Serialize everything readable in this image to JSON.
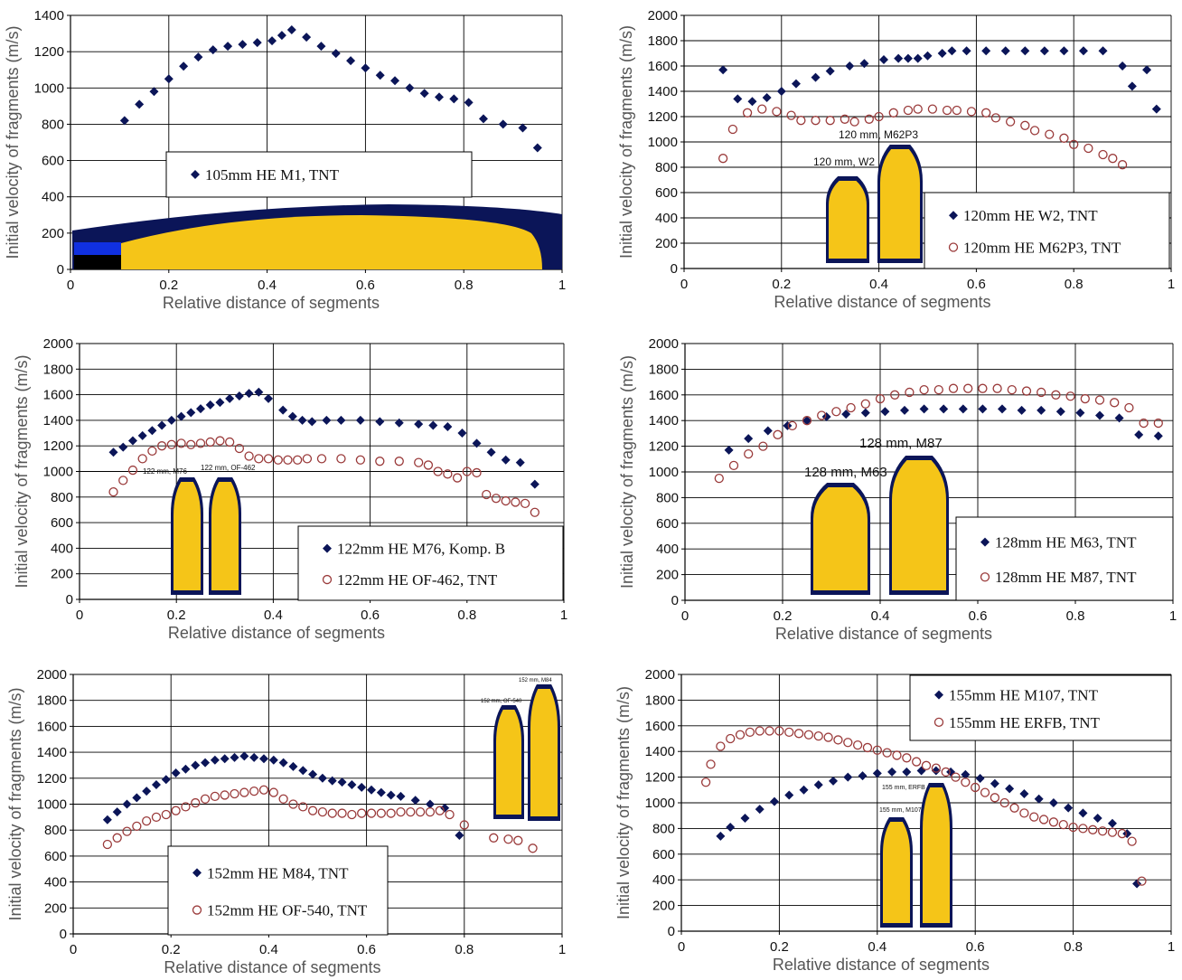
{
  "figure": {
    "colors": {
      "diamond": "#0b1558",
      "circle": "#9a3a3a",
      "shell_body": "#f5c518",
      "shell_case": "#0b1558",
      "grid": "#000000"
    }
  },
  "chart_data": [
    {
      "type": "scatter",
      "xlabel": "Relative distance of segments",
      "ylabel": "Initial velocity of fragments (m/s)",
      "xlim": [
        0,
        1
      ],
      "ylim": [
        0,
        1400
      ],
      "xticks": [
        "0",
        "0.2",
        "0.4",
        "0.6",
        "0.8",
        "1"
      ],
      "yticks": [
        "0",
        "200",
        "400",
        "600",
        "800",
        "1000",
        "1200",
        "1400"
      ],
      "grid": true,
      "legend_position": "center-left",
      "shell_labels": [],
      "series": [
        {
          "name": "105mm HE M1, TNT",
          "marker": "diamond",
          "x": [
            0.11,
            0.14,
            0.17,
            0.2,
            0.23,
            0.26,
            0.29,
            0.32,
            0.35,
            0.38,
            0.41,
            0.43,
            0.45,
            0.48,
            0.51,
            0.54,
            0.57,
            0.6,
            0.63,
            0.66,
            0.69,
            0.72,
            0.75,
            0.78,
            0.81,
            0.84,
            0.88,
            0.92,
            0.95
          ],
          "y": [
            820,
            910,
            980,
            1050,
            1120,
            1170,
            1210,
            1230,
            1240,
            1250,
            1260,
            1290,
            1320,
            1280,
            1230,
            1190,
            1150,
            1110,
            1070,
            1040,
            1000,
            970,
            950,
            940,
            920,
            830,
            800,
            780,
            670
          ]
        }
      ]
    },
    {
      "type": "scatter",
      "xlabel": "Relative distance of segments",
      "ylabel": "Initial velocity of fragments (m/s)",
      "xlim": [
        0,
        1
      ],
      "ylim": [
        0,
        2000
      ],
      "xticks": [
        "0",
        "0.2",
        "0.4",
        "0.6",
        "0.8",
        "1"
      ],
      "yticks": [
        "0",
        "200",
        "400",
        "600",
        "800",
        "1000",
        "1200",
        "1400",
        "1600",
        "1800",
        "2000"
      ],
      "grid": true,
      "legend_position": "bottom-right",
      "shell_labels": [
        "120 mm, W2",
        "120 mm, M62P3"
      ],
      "series": [
        {
          "name": "120mm HE W2, TNT",
          "marker": "diamond",
          "x": [
            0.08,
            0.11,
            0.14,
            0.17,
            0.2,
            0.23,
            0.27,
            0.3,
            0.34,
            0.37,
            0.41,
            0.44,
            0.46,
            0.48,
            0.5,
            0.53,
            0.55,
            0.58,
            0.62,
            0.66,
            0.7,
            0.74,
            0.78,
            0.82,
            0.86,
            0.9,
            0.92,
            0.95,
            0.97
          ],
          "y": [
            1570,
            1340,
            1320,
            1350,
            1400,
            1460,
            1510,
            1560,
            1600,
            1620,
            1650,
            1660,
            1660,
            1660,
            1680,
            1700,
            1720,
            1720,
            1720,
            1720,
            1720,
            1720,
            1720,
            1720,
            1720,
            1600,
            1440,
            1570,
            1260
          ]
        },
        {
          "name": "120mm HE M62P3, TNT",
          "marker": "circle",
          "x": [
            0.08,
            0.1,
            0.13,
            0.16,
            0.19,
            0.22,
            0.24,
            0.27,
            0.3,
            0.33,
            0.35,
            0.38,
            0.4,
            0.43,
            0.46,
            0.48,
            0.51,
            0.54,
            0.56,
            0.59,
            0.62,
            0.64,
            0.67,
            0.7,
            0.72,
            0.75,
            0.78,
            0.8,
            0.83,
            0.86,
            0.88,
            0.9
          ],
          "y": [
            870,
            1100,
            1230,
            1260,
            1240,
            1210,
            1170,
            1170,
            1170,
            1180,
            1160,
            1180,
            1200,
            1230,
            1250,
            1260,
            1260,
            1250,
            1250,
            1240,
            1230,
            1190,
            1160,
            1130,
            1090,
            1060,
            1030,
            980,
            950,
            900,
            870,
            820
          ]
        }
      ]
    },
    {
      "type": "scatter",
      "xlabel": "Relative distance of segments",
      "ylabel": "Initial velocity of fragments (m/s)",
      "xlim": [
        0,
        1
      ],
      "ylim": [
        0,
        2000
      ],
      "xticks": [
        "0",
        "0.2",
        "0.4",
        "0.6",
        "0.8",
        "1"
      ],
      "yticks": [
        "0",
        "200",
        "400",
        "600",
        "800",
        "1000",
        "1200",
        "1400",
        "1600",
        "1800",
        "2000"
      ],
      "grid": true,
      "legend_position": "bottom-right",
      "shell_labels": [
        "122 mm, M76",
        "122 mm, OF-462"
      ],
      "series": [
        {
          "name": "122mm HE M76, Komp. B",
          "marker": "diamond",
          "x": [
            0.07,
            0.09,
            0.11,
            0.13,
            0.15,
            0.17,
            0.19,
            0.21,
            0.23,
            0.25,
            0.27,
            0.29,
            0.31,
            0.33,
            0.35,
            0.37,
            0.39,
            0.42,
            0.44,
            0.46,
            0.48,
            0.51,
            0.54,
            0.58,
            0.62,
            0.66,
            0.7,
            0.73,
            0.76,
            0.79,
            0.82,
            0.85,
            0.88,
            0.91,
            0.94
          ],
          "y": [
            1150,
            1190,
            1240,
            1280,
            1320,
            1360,
            1400,
            1430,
            1460,
            1490,
            1520,
            1540,
            1570,
            1590,
            1610,
            1620,
            1570,
            1480,
            1430,
            1400,
            1390,
            1400,
            1400,
            1400,
            1390,
            1380,
            1370,
            1360,
            1350,
            1300,
            1220,
            1150,
            1090,
            1070,
            900
          ]
        },
        {
          "name": "122mm HE OF-462, TNT",
          "marker": "circle",
          "x": [
            0.07,
            0.09,
            0.11,
            0.13,
            0.15,
            0.17,
            0.19,
            0.21,
            0.23,
            0.25,
            0.27,
            0.29,
            0.31,
            0.33,
            0.35,
            0.37,
            0.39,
            0.41,
            0.43,
            0.45,
            0.47,
            0.5,
            0.54,
            0.58,
            0.62,
            0.66,
            0.7,
            0.72,
            0.74,
            0.76,
            0.78,
            0.8,
            0.82,
            0.84,
            0.86,
            0.88,
            0.9,
            0.92,
            0.94
          ],
          "y": [
            840,
            930,
            1010,
            1100,
            1160,
            1200,
            1210,
            1220,
            1210,
            1220,
            1230,
            1240,
            1230,
            1180,
            1120,
            1100,
            1100,
            1090,
            1090,
            1090,
            1100,
            1100,
            1100,
            1090,
            1080,
            1080,
            1070,
            1050,
            1000,
            980,
            950,
            1000,
            990,
            820,
            790,
            770,
            760,
            750,
            680
          ]
        }
      ]
    },
    {
      "type": "scatter",
      "xlabel": "Relative distance of segments",
      "ylabel": "Initial velocity of fragments (m/s)",
      "xlim": [
        0,
        1
      ],
      "ylim": [
        0,
        2000
      ],
      "xticks": [
        "0",
        "0.2",
        "0.4",
        "0.6",
        "0.8",
        "1"
      ],
      "yticks": [
        "0",
        "200",
        "400",
        "600",
        "800",
        "1000",
        "1200",
        "1400",
        "1600",
        "1800",
        "2000"
      ],
      "grid": true,
      "legend_position": "bottom-right",
      "shell_labels": [
        "128 mm, M63",
        "128 mm, M87"
      ],
      "series": [
        {
          "name": "128mm HE M63, TNT",
          "marker": "diamond",
          "x": [
            0.09,
            0.13,
            0.17,
            0.21,
            0.25,
            0.29,
            0.33,
            0.37,
            0.41,
            0.45,
            0.49,
            0.53,
            0.57,
            0.61,
            0.65,
            0.69,
            0.73,
            0.77,
            0.81,
            0.85,
            0.89,
            0.93,
            0.97
          ],
          "y": [
            1170,
            1260,
            1320,
            1360,
            1400,
            1430,
            1450,
            1460,
            1470,
            1480,
            1490,
            1490,
            1490,
            1490,
            1490,
            1480,
            1480,
            1470,
            1460,
            1440,
            1420,
            1290,
            1280
          ]
        },
        {
          "name": "128mm HE M87, TNT",
          "marker": "circle",
          "x": [
            0.07,
            0.1,
            0.13,
            0.16,
            0.19,
            0.22,
            0.25,
            0.28,
            0.31,
            0.34,
            0.37,
            0.4,
            0.43,
            0.46,
            0.49,
            0.52,
            0.55,
            0.58,
            0.61,
            0.64,
            0.67,
            0.7,
            0.73,
            0.76,
            0.79,
            0.82,
            0.85,
            0.88,
            0.91,
            0.94,
            0.97
          ],
          "y": [
            950,
            1050,
            1140,
            1200,
            1290,
            1360,
            1400,
            1440,
            1470,
            1500,
            1530,
            1570,
            1600,
            1620,
            1640,
            1640,
            1650,
            1650,
            1650,
            1650,
            1640,
            1630,
            1620,
            1600,
            1590,
            1570,
            1560,
            1540,
            1500,
            1380,
            1380
          ]
        }
      ]
    },
    {
      "type": "scatter",
      "xlabel": "Relative distance of segments",
      "ylabel": "Initial velocity of fragments (m/s)",
      "xlim": [
        0,
        1
      ],
      "ylim": [
        0,
        2000
      ],
      "xticks": [
        "0",
        "0.2",
        "0.4",
        "0.6",
        "0.8",
        "1"
      ],
      "yticks": [
        "0",
        "200",
        "400",
        "600",
        "800",
        "1000",
        "1200",
        "1400",
        "1600",
        "1800",
        "2000"
      ],
      "grid": true,
      "legend_position": "bottom-left",
      "shell_labels": [
        "152 mm, OF-540",
        "152 mm, M84"
      ],
      "series": [
        {
          "name": "152mm HE M84, TNT",
          "marker": "diamond",
          "x": [
            0.07,
            0.09,
            0.11,
            0.13,
            0.15,
            0.17,
            0.19,
            0.21,
            0.23,
            0.25,
            0.27,
            0.29,
            0.31,
            0.33,
            0.35,
            0.37,
            0.39,
            0.41,
            0.43,
            0.45,
            0.47,
            0.49,
            0.51,
            0.53,
            0.55,
            0.57,
            0.59,
            0.61,
            0.63,
            0.65,
            0.67,
            0.7,
            0.73,
            0.76,
            0.79
          ],
          "y": [
            880,
            940,
            1000,
            1050,
            1100,
            1150,
            1190,
            1240,
            1270,
            1300,
            1320,
            1340,
            1350,
            1360,
            1370,
            1360,
            1350,
            1340,
            1320,
            1290,
            1260,
            1230,
            1200,
            1180,
            1170,
            1150,
            1130,
            1110,
            1090,
            1070,
            1060,
            1030,
            1000,
            970,
            760
          ]
        },
        {
          "name": "152mm HE OF-540, TNT",
          "marker": "circle",
          "x": [
            0.07,
            0.09,
            0.11,
            0.13,
            0.15,
            0.17,
            0.19,
            0.21,
            0.23,
            0.25,
            0.27,
            0.29,
            0.31,
            0.33,
            0.35,
            0.37,
            0.39,
            0.41,
            0.43,
            0.45,
            0.47,
            0.49,
            0.51,
            0.53,
            0.55,
            0.57,
            0.59,
            0.61,
            0.63,
            0.65,
            0.67,
            0.69,
            0.71,
            0.73,
            0.75,
            0.77,
            0.8,
            0.86,
            0.89,
            0.91,
            0.94
          ],
          "y": [
            690,
            740,
            790,
            830,
            870,
            900,
            920,
            950,
            980,
            1010,
            1040,
            1060,
            1070,
            1080,
            1090,
            1100,
            1110,
            1090,
            1040,
            1000,
            980,
            950,
            940,
            930,
            930,
            920,
            930,
            930,
            930,
            930,
            940,
            940,
            940,
            940,
            950,
            920,
            840,
            740,
            730,
            720,
            660
          ]
        }
      ]
    },
    {
      "type": "scatter",
      "xlabel": "Relative distance of segments",
      "ylabel": "Initial velocity of fragments (m/s)",
      "xlim": [
        0,
        1
      ],
      "ylim": [
        0,
        2000
      ],
      "xticks": [
        "0",
        "0.2",
        "0.4",
        "0.6",
        "0.8",
        "1"
      ],
      "yticks": [
        "0",
        "200",
        "400",
        "600",
        "800",
        "1000",
        "1200",
        "1400",
        "1600",
        "1800",
        "2000"
      ],
      "grid": true,
      "legend_position": "top-right",
      "shell_labels": [
        "155 mm, M107",
        "155 mm, ERFB"
      ],
      "series": [
        {
          "name": "155mm HE M107, TNT",
          "marker": "diamond",
          "x": [
            0.08,
            0.1,
            0.13,
            0.16,
            0.19,
            0.22,
            0.25,
            0.28,
            0.31,
            0.34,
            0.37,
            0.4,
            0.43,
            0.46,
            0.49,
            0.52,
            0.55,
            0.58,
            0.61,
            0.64,
            0.67,
            0.7,
            0.73,
            0.76,
            0.79,
            0.82,
            0.85,
            0.88,
            0.91,
            0.93
          ],
          "y": [
            740,
            810,
            880,
            950,
            1010,
            1060,
            1100,
            1140,
            1170,
            1200,
            1210,
            1230,
            1240,
            1240,
            1250,
            1250,
            1240,
            1220,
            1190,
            1150,
            1110,
            1070,
            1030,
            1000,
            960,
            920,
            880,
            840,
            760,
            370
          ]
        },
        {
          "name": "155mm HE ERFB, TNT",
          "marker": "circle",
          "x": [
            0.05,
            0.06,
            0.08,
            0.1,
            0.12,
            0.14,
            0.16,
            0.18,
            0.2,
            0.22,
            0.24,
            0.26,
            0.28,
            0.3,
            0.32,
            0.34,
            0.36,
            0.38,
            0.4,
            0.42,
            0.44,
            0.46,
            0.48,
            0.5,
            0.52,
            0.54,
            0.56,
            0.58,
            0.6,
            0.62,
            0.64,
            0.66,
            0.68,
            0.7,
            0.72,
            0.74,
            0.76,
            0.78,
            0.8,
            0.82,
            0.84,
            0.86,
            0.88,
            0.9,
            0.92,
            0.94
          ],
          "y": [
            1160,
            1300,
            1440,
            1500,
            1530,
            1550,
            1560,
            1560,
            1560,
            1550,
            1540,
            1530,
            1520,
            1510,
            1490,
            1470,
            1450,
            1430,
            1410,
            1390,
            1370,
            1350,
            1320,
            1290,
            1270,
            1240,
            1200,
            1160,
            1120,
            1080,
            1040,
            1000,
            960,
            920,
            890,
            870,
            850,
            830,
            810,
            800,
            790,
            780,
            770,
            760,
            700,
            390
          ]
        }
      ]
    }
  ]
}
